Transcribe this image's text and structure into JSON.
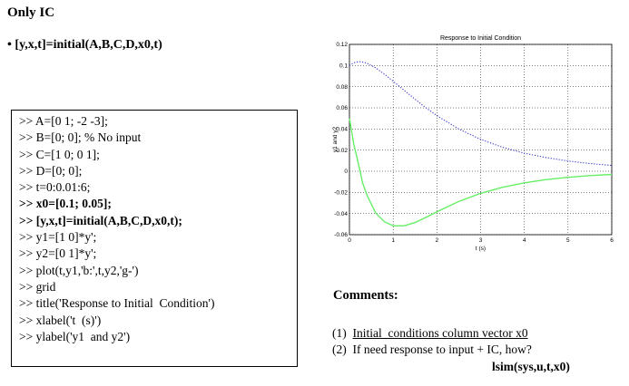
{
  "slide": {
    "title": "Only IC",
    "bullet": "• [y,x,t]=initial(A,B,C,D,x0,t)"
  },
  "code": [
    {
      "text": ">> A=[0 1; -2 -3];",
      "bold": false
    },
    {
      "text": ">> B=[0; 0]; % No input",
      "bold": false
    },
    {
      "text": ">> C=[1 0; 0 1];",
      "bold": false
    },
    {
      "text": ">> D=[0; 0];",
      "bold": false
    },
    {
      "text": ">> t=0:0.01:6;",
      "bold": false
    },
    {
      "text": ">> x0=[0.1; 0.05];",
      "bold": true
    },
    {
      "text": ">> [y,x,t]=initial(A,B,C,D,x0,t);",
      "bold": true
    },
    {
      "text": ">> y1=[1 0]*y';",
      "bold": false
    },
    {
      "text": ">> y2=[0 1]*y';",
      "bold": false
    },
    {
      "text": ">> plot(t,y1,'b:',t,y2,'g-')",
      "bold": false
    },
    {
      "text": ">> grid",
      "bold": false
    },
    {
      "text": ">> title('Response to Initial  Condition')",
      "bold": false
    },
    {
      "text": ">> xlabel('t  (s)')",
      "bold": false
    },
    {
      "text": ">> ylabel('y1  and y2')",
      "bold": false
    }
  ],
  "comments": {
    "title": "Comments:",
    "item1_num": "(1)",
    "item1_text": "Initial  conditions column vector x0",
    "item2": "(2)  If need response to input + IC, how?",
    "lsim": "lsim(sys,u,t,x0)"
  },
  "colors": {
    "series_y1": "#3333cc",
    "series_y2": "#66ee66"
  },
  "chart_data": {
    "type": "line",
    "title": "Response to Initial Condition",
    "xlabel": "t (s)",
    "ylabel": "y1 and y2",
    "xlim": [
      0,
      6
    ],
    "ylim": [
      -0.06,
      0.12
    ],
    "xticks": [
      0,
      1,
      2,
      3,
      4,
      5,
      6
    ],
    "yticks": [
      -0.06,
      -0.04,
      -0.02,
      0,
      0.02,
      0.04,
      0.06,
      0.08,
      0.1,
      0.12
    ],
    "ytick_labels": [
      "-0.06",
      "-0.04",
      "-0.02",
      "0",
      "0.02",
      "0.04",
      "0.06",
      "0.08",
      "0.1",
      "0.12"
    ],
    "grid": true,
    "series": [
      {
        "style": "dotted",
        "color": "#3333cc",
        "x": [
          0,
          0.1,
          0.2,
          0.3,
          0.4,
          0.6,
          0.8,
          1.0,
          1.25,
          1.5,
          1.75,
          2.0,
          2.5,
          3.0,
          3.5,
          4.0,
          4.5,
          5.0,
          5.5,
          6.0
        ],
        "y": [
          0.1,
          0.1026,
          0.1036,
          0.1034,
          0.1022,
          0.0978,
          0.0918,
          0.0851,
          0.0766,
          0.0681,
          0.06,
          0.0526,
          0.04,
          0.0302,
          0.0227,
          0.0171,
          0.0129,
          0.0097,
          0.0073,
          0.0055
        ]
      },
      {
        "style": "solid",
        "color": "#66ee66",
        "x": [
          0,
          0.1,
          0.2,
          0.3,
          0.4,
          0.6,
          0.8,
          1.0,
          1.25,
          1.5,
          1.75,
          2.0,
          2.5,
          3.0,
          3.5,
          4.0,
          4.5,
          5.0,
          5.5,
          6.0
        ],
        "y": [
          0.05,
          0.0255,
          0.0082,
          -0.011,
          -0.0226,
          -0.0394,
          -0.0477,
          -0.0516,
          -0.0516,
          -0.0485,
          -0.0436,
          -0.0383,
          -0.0286,
          -0.0209,
          -0.0152,
          -0.011,
          -0.0079,
          -0.0057,
          -0.0041,
          -0.003
        ]
      }
    ]
  }
}
